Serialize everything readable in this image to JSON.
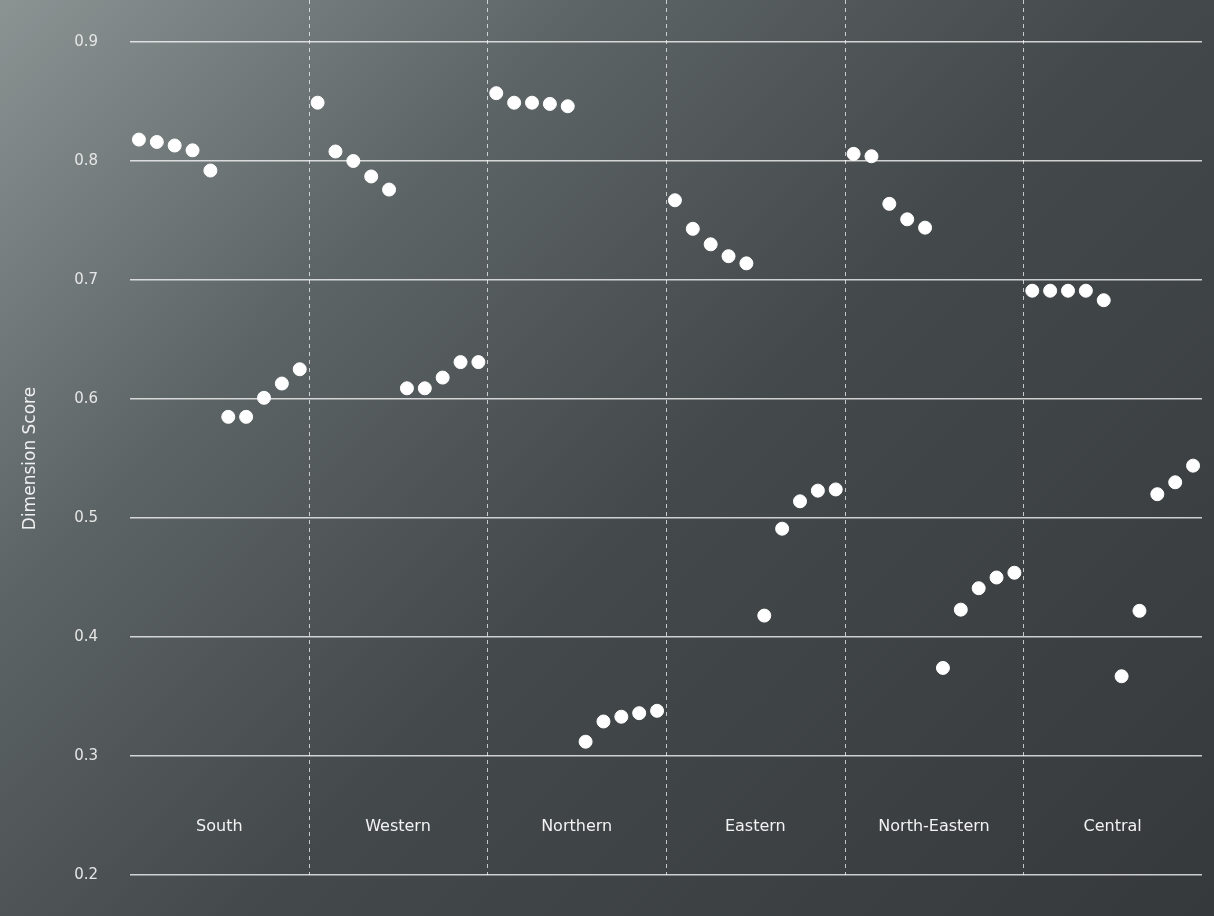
{
  "chart_data": {
    "type": "scatter",
    "y_label": "Dimension Score",
    "categories": [
      "South",
      "Western",
      "Northern",
      "Eastern",
      "North-Eastern",
      "Central"
    ],
    "series": [
      {
        "color": "#ffffff",
        "marker": "circle",
        "values": [
          [
            0.818,
            0.816,
            0.813,
            0.809,
            0.792
          ],
          [
            0.849,
            0.808,
            0.8,
            0.787,
            0.776
          ],
          [
            0.857,
            0.849,
            0.849,
            0.848,
            0.846
          ],
          [
            0.767,
            0.743,
            0.73,
            0.72,
            0.714
          ],
          [
            0.806,
            0.804,
            0.764,
            0.751,
            0.744
          ],
          [
            0.691,
            0.691,
            0.691,
            0.691,
            0.683
          ]
        ]
      },
      {
        "color": "#ffffff",
        "marker": "circle",
        "values": [
          [
            0.585,
            0.585,
            0.601,
            0.613,
            0.625
          ],
          [
            0.609,
            0.609,
            0.618,
            0.631,
            0.631
          ],
          [
            0.312,
            0.329,
            0.333,
            0.336,
            0.338
          ],
          [
            0.418,
            0.491,
            0.514,
            0.523,
            0.524
          ],
          [
            0.374,
            0.423,
            0.441,
            0.45,
            0.454
          ],
          [
            0.367,
            0.422,
            0.52,
            0.53,
            0.544
          ]
        ]
      }
    ],
    "ylim": [
      0.2,
      0.9
    ],
    "yticks": [
      0.2,
      0.3,
      0.4,
      0.5,
      0.6,
      0.7,
      0.8,
      0.9
    ],
    "grid": true
  }
}
